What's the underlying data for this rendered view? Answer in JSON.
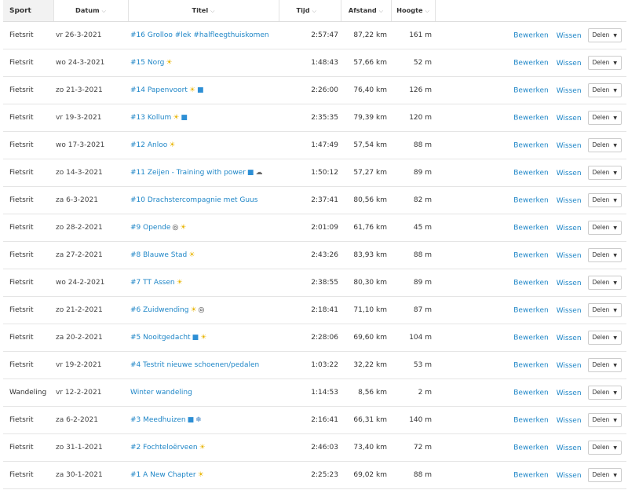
{
  "headers": {
    "sport": "Sport",
    "date": "Datum",
    "title": "Titel",
    "time": "Tijd",
    "distance": "Afstand",
    "elevation": "Hoogte"
  },
  "actions": {
    "edit": "Bewerken",
    "delete": "Wissen",
    "share": "Delen"
  },
  "rows": [
    {
      "sport": "Fietsrit",
      "date": "vr 26-3-2021",
      "title": "#16 Grolloo #lek #halfleegthuiskomen",
      "emoji": [],
      "time": "2:57:47",
      "distance": "87,22 km",
      "elevation": "161 m"
    },
    {
      "sport": "Fietsrit",
      "date": "wo 24-3-2021",
      "title": "#15 Norg",
      "emoji": [
        "sun"
      ],
      "time": "1:48:43",
      "distance": "57,66 km",
      "elevation": "52 m"
    },
    {
      "sport": "Fietsrit",
      "date": "zo 21-3-2021",
      "title": "#14 Papenvoort",
      "emoji": [
        "sun",
        "shoe"
      ],
      "time": "2:26:00",
      "distance": "76,40 km",
      "elevation": "126 m"
    },
    {
      "sport": "Fietsrit",
      "date": "vr 19-3-2021",
      "title": "#13 Kollum",
      "emoji": [
        "sun",
        "shoe"
      ],
      "time": "2:35:35",
      "distance": "79,39 km",
      "elevation": "120 m"
    },
    {
      "sport": "Fietsrit",
      "date": "wo 17-3-2021",
      "title": "#12 Anloo",
      "emoji": [
        "sun"
      ],
      "time": "1:47:49",
      "distance": "57,54 km",
      "elevation": "88 m"
    },
    {
      "sport": "Fietsrit",
      "date": "zo 14-3-2021",
      "title": "#11 Zeijen - Training with power",
      "emoji": [
        "shoe",
        "cloud"
      ],
      "time": "1:50:12",
      "distance": "57,27 km",
      "elevation": "89 m"
    },
    {
      "sport": "Fietsrit",
      "date": "za 6-3-2021",
      "title": "#10 Drachstercompagnie met Guus",
      "emoji": [],
      "time": "2:37:41",
      "distance": "80,56 km",
      "elevation": "82 m"
    },
    {
      "sport": "Fietsrit",
      "date": "zo 28-2-2021",
      "title": "#9 Opende",
      "emoji": [
        "bike",
        "sun"
      ],
      "time": "2:01:09",
      "distance": "61,76 km",
      "elevation": "45 m"
    },
    {
      "sport": "Fietsrit",
      "date": "za 27-2-2021",
      "title": "#8 Blauwe Stad",
      "emoji": [
        "sun"
      ],
      "time": "2:43:26",
      "distance": "83,93 km",
      "elevation": "88 m"
    },
    {
      "sport": "Fietsrit",
      "date": "wo 24-2-2021",
      "title": "#7 TT Assen",
      "emoji": [
        "sun"
      ],
      "time": "2:38:55",
      "distance": "80,30 km",
      "elevation": "89 m"
    },
    {
      "sport": "Fietsrit",
      "date": "zo 21-2-2021",
      "title": "#6 Zuidwending",
      "emoji": [
        "sun",
        "bike"
      ],
      "time": "2:18:41",
      "distance": "71,10 km",
      "elevation": "87 m"
    },
    {
      "sport": "Fietsrit",
      "date": "za 20-2-2021",
      "title": "#5 Nooitgedacht",
      "emoji": [
        "shoe",
        "sun"
      ],
      "time": "2:28:06",
      "distance": "69,60 km",
      "elevation": "104 m"
    },
    {
      "sport": "Fietsrit",
      "date": "vr 19-2-2021",
      "title": "#4 Testrit nieuwe schoenen/pedalen",
      "emoji": [],
      "time": "1:03:22",
      "distance": "32,22 km",
      "elevation": "53 m"
    },
    {
      "sport": "Wandeling",
      "date": "vr 12-2-2021",
      "title": "Winter wandeling",
      "emoji": [],
      "time": "1:14:53",
      "distance": "8,56 km",
      "elevation": "2 m"
    },
    {
      "sport": "Fietsrit",
      "date": "za 6-2-2021",
      "title": "#3 Meedhuizen",
      "emoji": [
        "shoe",
        "snow"
      ],
      "time": "2:16:41",
      "distance": "66,31 km",
      "elevation": "140 m"
    },
    {
      "sport": "Fietsrit",
      "date": "zo 31-1-2021",
      "title": "#2 Fochteloërveen",
      "emoji": [
        "sun"
      ],
      "time": "2:46:03",
      "distance": "73,40 km",
      "elevation": "72 m"
    },
    {
      "sport": "Fietsrit",
      "date": "za 30-1-2021",
      "title": "#1 A New Chapter",
      "emoji": [
        "sun"
      ],
      "time": "2:25:23",
      "distance": "69,02 km",
      "elevation": "88 m"
    }
  ]
}
